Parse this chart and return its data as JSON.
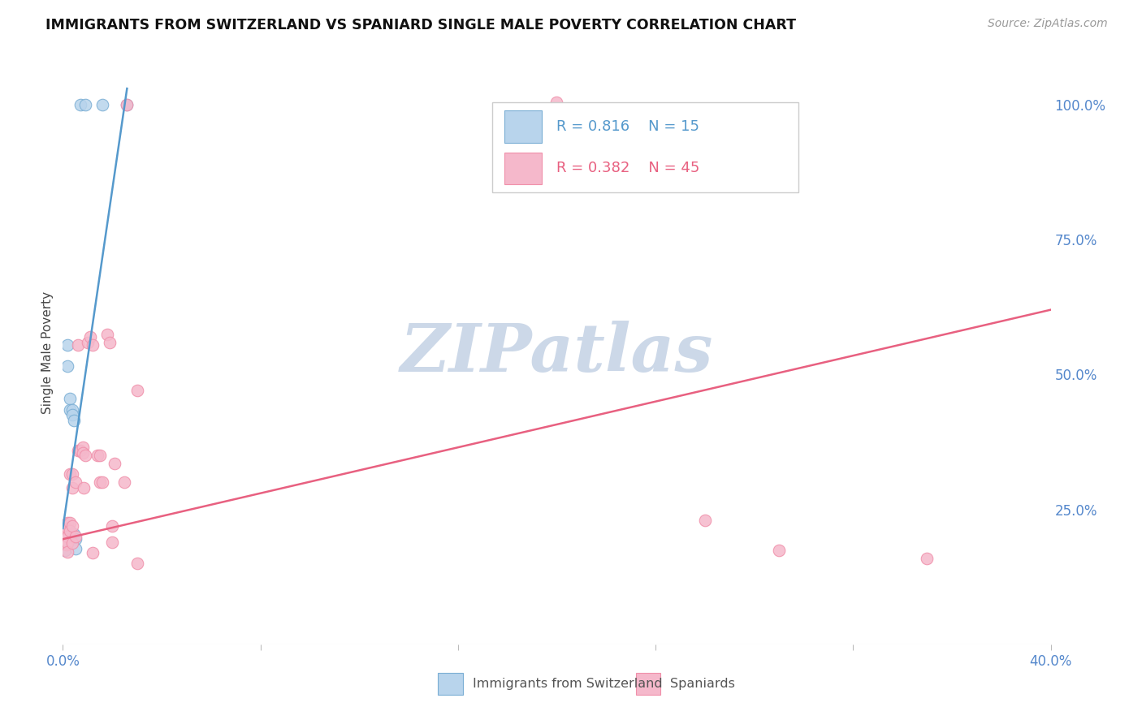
{
  "title": "IMMIGRANTS FROM SWITZERLAND VS SPANIARD SINGLE MALE POVERTY CORRELATION CHART",
  "source": "Source: ZipAtlas.com",
  "ylabel": "Single Male Poverty",
  "xlim": [
    0.0,
    0.4
  ],
  "ylim": [
    0.0,
    1.08
  ],
  "legend_blue_label": "Immigrants from Switzerland",
  "legend_pink_label": "Spaniards",
  "legend_blue_r": "R = 0.816",
  "legend_blue_n": "N = 15",
  "legend_pink_r": "R = 0.382",
  "legend_pink_n": "N = 45",
  "blue_fill_color": "#b8d4ec",
  "pink_fill_color": "#f5b8cb",
  "blue_edge_color": "#7aaed4",
  "pink_edge_color": "#f090aa",
  "blue_line_color": "#5599cc",
  "pink_line_color": "#e86080",
  "blue_scatter": [
    [
      0.001,
      0.175
    ],
    [
      0.002,
      0.555
    ],
    [
      0.002,
      0.515
    ],
    [
      0.003,
      0.455
    ],
    [
      0.003,
      0.435
    ],
    [
      0.004,
      0.435
    ],
    [
      0.004,
      0.425
    ],
    [
      0.0045,
      0.415
    ],
    [
      0.0045,
      0.205
    ],
    [
      0.005,
      0.195
    ],
    [
      0.005,
      0.178
    ],
    [
      0.007,
      1.0
    ],
    [
      0.009,
      1.0
    ],
    [
      0.016,
      1.0
    ],
    [
      0.026,
      1.0
    ]
  ],
  "pink_scatter": [
    [
      0.001,
      0.205
    ],
    [
      0.001,
      0.195
    ],
    [
      0.0015,
      0.185
    ],
    [
      0.002,
      0.225
    ],
    [
      0.002,
      0.215
    ],
    [
      0.002,
      0.2
    ],
    [
      0.002,
      0.188
    ],
    [
      0.002,
      0.172
    ],
    [
      0.003,
      0.315
    ],
    [
      0.003,
      0.225
    ],
    [
      0.003,
      0.21
    ],
    [
      0.004,
      0.315
    ],
    [
      0.004,
      0.29
    ],
    [
      0.004,
      0.22
    ],
    [
      0.004,
      0.188
    ],
    [
      0.005,
      0.3
    ],
    [
      0.005,
      0.2
    ],
    [
      0.006,
      0.555
    ],
    [
      0.006,
      0.36
    ],
    [
      0.007,
      0.36
    ],
    [
      0.008,
      0.365
    ],
    [
      0.008,
      0.355
    ],
    [
      0.0085,
      0.29
    ],
    [
      0.009,
      0.35
    ],
    [
      0.01,
      0.56
    ],
    [
      0.011,
      0.57
    ],
    [
      0.012,
      0.555
    ],
    [
      0.012,
      0.17
    ],
    [
      0.014,
      0.35
    ],
    [
      0.015,
      0.35
    ],
    [
      0.015,
      0.3
    ],
    [
      0.016,
      0.3
    ],
    [
      0.018,
      0.575
    ],
    [
      0.019,
      0.56
    ],
    [
      0.02,
      0.22
    ],
    [
      0.02,
      0.19
    ],
    [
      0.021,
      0.335
    ],
    [
      0.025,
      0.3
    ],
    [
      0.026,
      1.0
    ],
    [
      0.03,
      0.15
    ],
    [
      0.03,
      0.47
    ],
    [
      0.2,
      1.005
    ],
    [
      0.26,
      0.23
    ],
    [
      0.29,
      0.175
    ],
    [
      0.35,
      0.16
    ]
  ],
  "blue_trend_x": [
    0.0,
    0.026
  ],
  "blue_trend_y": [
    0.215,
    1.03
  ],
  "pink_trend_x": [
    0.0,
    0.4
  ],
  "pink_trend_y": [
    0.195,
    0.62
  ],
  "watermark_text": "ZIPatlas",
  "watermark_color": "#ccd8e8",
  "background_color": "#ffffff",
  "grid_color": "#dddddd",
  "right_ytick_vals": [
    0.0,
    0.25,
    0.5,
    0.75,
    1.0
  ],
  "right_yticklabels": [
    "",
    "25.0%",
    "50.0%",
    "75.0%",
    "100.0%"
  ],
  "xtick_vals": [
    0.0,
    0.08,
    0.16,
    0.24,
    0.32,
    0.4
  ],
  "xtick_labels": [
    "0.0%",
    "",
    "",
    "",
    "",
    "40.0%"
  ],
  "tick_label_color": "#5588cc",
  "title_color": "#111111",
  "source_color": "#999999",
  "ylabel_color": "#444444",
  "legend_text_blue_color": "#5599cc",
  "legend_text_pink_color": "#e86080",
  "legend_border_color": "#cccccc",
  "bottom_legend_label_color": "#555555",
  "marker_size": 110
}
